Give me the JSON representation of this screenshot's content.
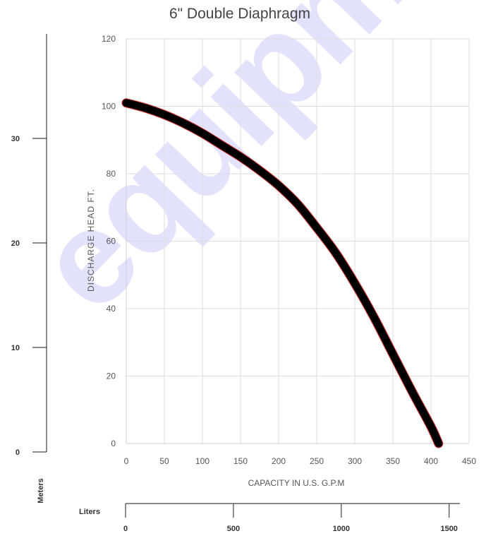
{
  "chart_data": {
    "type": "line",
    "title": "6\" Double Diaphragm",
    "xlabel": "CAPACITY IN U.S. G.P.M",
    "ylabel": "DISCHARGE HEAD FT.",
    "xlim": [
      0,
      450
    ],
    "ylim": [
      0,
      120
    ],
    "x_ticks": [
      0,
      50,
      100,
      150,
      200,
      250,
      300,
      350,
      400,
      450
    ],
    "y_ticks": [
      0,
      20,
      40,
      60,
      80,
      100,
      120
    ],
    "grid": true,
    "series": [
      {
        "x": [
          0,
          25,
          50,
          75,
          100,
          125,
          150,
          175,
          200,
          225,
          250,
          275,
          300,
          325,
          350,
          375,
          400,
          410
        ],
        "y": [
          101,
          99.5,
          97.5,
          95,
          92,
          88.5,
          85,
          81,
          76.5,
          71,
          64,
          56.5,
          47.5,
          37.5,
          26.5,
          15.5,
          5,
          0
        ],
        "color": "#000000"
      }
    ],
    "secondary_axes": {
      "meters": {
        "label": "Meters",
        "ticks": [
          "0",
          "10",
          "20",
          "30"
        ],
        "values": [
          0,
          10,
          20,
          30
        ]
      },
      "liters": {
        "label": "Liters",
        "ticks": [
          "0",
          "500",
          "1000",
          "1500"
        ],
        "values": [
          0,
          500,
          1000,
          1500
        ]
      }
    }
  },
  "watermark": {
    "text": "equipment.com"
  }
}
